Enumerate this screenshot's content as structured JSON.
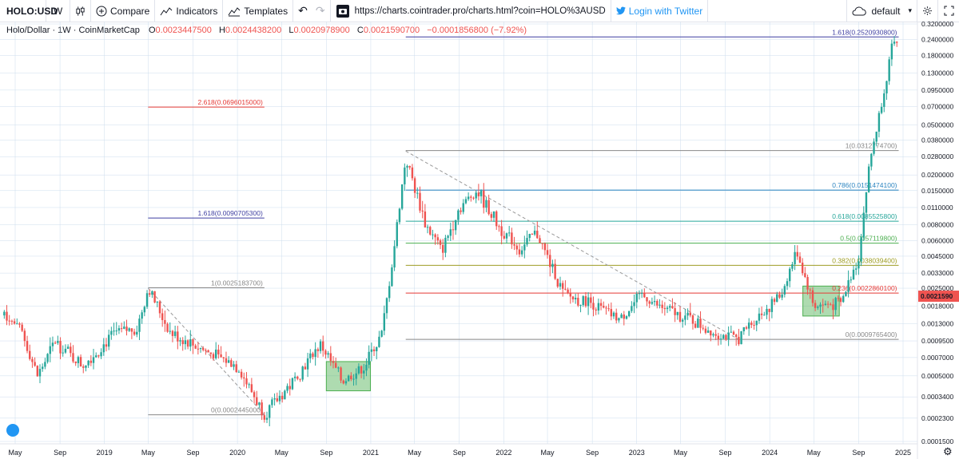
{
  "toolbar": {
    "symbol": "HOLO:USD",
    "interval": "W",
    "compare": "Compare",
    "indicators": "Indicators",
    "templates": "Templates",
    "url": "https://charts.cointrader.pro/charts.html?coin=HOLO%3AUSD",
    "login": "Login with Twitter",
    "layout": "default"
  },
  "legend": {
    "title": "Holo/Dollar · 1W · CoinMarketCap",
    "open": "0.0023447500",
    "high": "0.0024438200",
    "low": "0.0020978900",
    "close": "0.0021590700",
    "change": "−0.0001856800 (−7.92%)"
  },
  "colors": {
    "up": "#26a69a",
    "down": "#ef5350",
    "guide": "#ccddee"
  },
  "chart_data": {
    "type": "candlestick",
    "y_scale": "log",
    "ylim": [
      0.00015,
      0.32
    ],
    "yticks": [
      "0.3200000",
      "0.2400000",
      "0.1800000",
      "0.1300000",
      "0.0950000",
      "0.0700000",
      "0.0500000",
      "0.0380000",
      "0.0280000",
      "0.0200000",
      "0.0150000",
      "0.0110000",
      "0.0080000",
      "0.0060000",
      "0.0045000",
      "0.0033000",
      "0.0025000",
      "0.0018000",
      "0.0013000",
      "0.0009500",
      "0.0007000",
      "0.0005000",
      "0.0003400",
      "0.0002300",
      "0.0001500"
    ],
    "ytick_values": [
      0.32,
      0.24,
      0.18,
      0.13,
      0.095,
      0.07,
      0.05,
      0.038,
      0.028,
      0.02,
      0.015,
      0.011,
      0.008,
      0.006,
      0.0045,
      0.0033,
      0.0025,
      0.0018,
      0.0013,
      0.00095,
      0.0007,
      0.0005,
      0.00034,
      0.00023,
      0.00015
    ],
    "last_price_label": "0.0021590",
    "last_price": 0.002159,
    "xticks": [
      {
        "label": "May",
        "date": "2018-05-01"
      },
      {
        "label": "Sep",
        "date": "2018-09-01"
      },
      {
        "label": "2019",
        "date": "2019-01-01"
      },
      {
        "label": "May",
        "date": "2019-05-01"
      },
      {
        "label": "Sep",
        "date": "2019-09-01"
      },
      {
        "label": "2020",
        "date": "2020-01-01"
      },
      {
        "label": "May",
        "date": "2020-05-01"
      },
      {
        "label": "Sep",
        "date": "2020-09-01"
      },
      {
        "label": "2021",
        "date": "2021-01-01"
      },
      {
        "label": "May",
        "date": "2021-05-01"
      },
      {
        "label": "Sep",
        "date": "2021-09-01"
      },
      {
        "label": "2022",
        "date": "2022-01-01"
      },
      {
        "label": "May",
        "date": "2022-05-01"
      },
      {
        "label": "Sep",
        "date": "2022-09-01"
      },
      {
        "label": "2023",
        "date": "2023-01-01"
      },
      {
        "label": "May",
        "date": "2023-05-01"
      },
      {
        "label": "Sep",
        "date": "2023-09-01"
      },
      {
        "label": "2024",
        "date": "2024-01-01"
      },
      {
        "label": "May",
        "date": "2024-05-01"
      },
      {
        "label": "Sep",
        "date": "2024-09-01"
      },
      {
        "label": "2025",
        "date": "2025-01-01"
      }
    ],
    "price_path": [
      {
        "date": "2018-04-01",
        "price": 0.0016
      },
      {
        "date": "2018-05-20",
        "price": 0.0011
      },
      {
        "date": "2018-07-01",
        "price": 0.0005
      },
      {
        "date": "2018-08-20",
        "price": 0.00095
      },
      {
        "date": "2018-11-01",
        "price": 0.0006
      },
      {
        "date": "2019-02-01",
        "price": 0.0011
      },
      {
        "date": "2019-04-01",
        "price": 0.0012
      },
      {
        "date": "2019-05-01",
        "price": 0.0025
      },
      {
        "date": "2019-07-01",
        "price": 0.0011
      },
      {
        "date": "2019-10-01",
        "price": 0.0008
      },
      {
        "date": "2020-01-01",
        "price": 0.0006
      },
      {
        "date": "2020-03-15",
        "price": 0.000245
      },
      {
        "date": "2020-06-01",
        "price": 0.00045
      },
      {
        "date": "2020-08-15",
        "price": 0.0009
      },
      {
        "date": "2020-10-15",
        "price": 0.00045
      },
      {
        "date": "2020-12-15",
        "price": 0.0006
      },
      {
        "date": "2021-02-01",
        "price": 0.0011
      },
      {
        "date": "2021-03-01",
        "price": 0.004
      },
      {
        "date": "2021-04-07",
        "price": 0.028
      },
      {
        "date": "2021-06-01",
        "price": 0.008
      },
      {
        "date": "2021-07-15",
        "price": 0.005
      },
      {
        "date": "2021-09-01",
        "price": 0.011
      },
      {
        "date": "2021-10-20",
        "price": 0.015
      },
      {
        "date": "2021-12-15",
        "price": 0.008
      },
      {
        "date": "2022-02-15",
        "price": 0.005
      },
      {
        "date": "2022-04-01",
        "price": 0.007
      },
      {
        "date": "2022-06-15",
        "price": 0.0022
      },
      {
        "date": "2022-09-01",
        "price": 0.0019
      },
      {
        "date": "2022-11-15",
        "price": 0.0014
      },
      {
        "date": "2023-01-15",
        "price": 0.0022
      },
      {
        "date": "2023-03-01",
        "price": 0.0018
      },
      {
        "date": "2023-06-01",
        "price": 0.0014
      },
      {
        "date": "2023-08-01",
        "price": 0.0011
      },
      {
        "date": "2023-10-01",
        "price": 0.00098
      },
      {
        "date": "2023-12-01",
        "price": 0.0015
      },
      {
        "date": "2024-02-01",
        "price": 0.0022
      },
      {
        "date": "2024-03-15",
        "price": 0.005
      },
      {
        "date": "2024-05-01",
        "price": 0.0018
      },
      {
        "date": "2024-07-15",
        "price": 0.0019
      },
      {
        "date": "2024-09-01",
        "price": 0.0045
      },
      {
        "date": "2024-10-01",
        "price": 0.025
      },
      {
        "date": "2024-11-01",
        "price": 0.07
      },
      {
        "date": "2024-12-01",
        "price": 0.2
      },
      {
        "date": "2024-12-15",
        "price": 0.23
      }
    ],
    "fib_left": [
      {
        "label": "2.618(0.0696015000)",
        "value": 0.0696015,
        "color": "#e53935"
      },
      {
        "label": "1.618(0.0090705300)",
        "value": 0.00907053,
        "color": "#3f3fa1"
      },
      {
        "label": "1(0.0025183700)",
        "value": 0.00251837,
        "color": "#888888"
      },
      {
        "label": "0(0.0002445000)",
        "value": 0.0002445,
        "color": "#888888"
      }
    ],
    "fib_left_range": [
      "2019-05-01",
      "2020-03-15"
    ],
    "fib_right": [
      {
        "label": "1.618(0.2520930800)",
        "value": 0.25209308,
        "color": "#3f3fa1"
      },
      {
        "label": "1(0.0312774700)",
        "value": 0.03127747,
        "color": "#888888"
      },
      {
        "label": "0.786(0.0151474100)",
        "value": 0.01514741,
        "color": "#2e86c1"
      },
      {
        "label": "0.618(0.0085525800)",
        "value": 0.00855258,
        "color": "#26a69a"
      },
      {
        "label": "0.5(0.0057119800)",
        "value": 0.00571198,
        "color": "#4caf50"
      },
      {
        "label": "0.382(0.0038039400)",
        "value": 0.00380394,
        "color": "#9e9d24"
      },
      {
        "label": "0.236(0.0022860100)",
        "value": 0.00228601,
        "color": "#e53935"
      },
      {
        "label": "0(0.0009765400)",
        "value": 0.00097654,
        "color": "#888888"
      }
    ],
    "fib_right_range": [
      "2021-04-07",
      "2024-12-20"
    ],
    "trendlines": [
      {
        "from": {
          "date": "2019-05-01",
          "price": 0.0025
        },
        "to": {
          "date": "2020-03-15",
          "price": 0.000245
        }
      },
      {
        "from": {
          "date": "2021-04-07",
          "price": 0.031
        },
        "to": {
          "date": "2023-10-15",
          "price": 0.00095
        }
      }
    ],
    "zones": [
      {
        "from": {
          "date": "2020-09-01",
          "price": 0.00065
        },
        "to": {
          "date": "2020-12-31",
          "price": 0.00038
        }
      },
      {
        "from": {
          "date": "2024-04-01",
          "price": 0.0026
        },
        "to": {
          "date": "2024-07-10",
          "price": 0.0015
        }
      }
    ]
  }
}
